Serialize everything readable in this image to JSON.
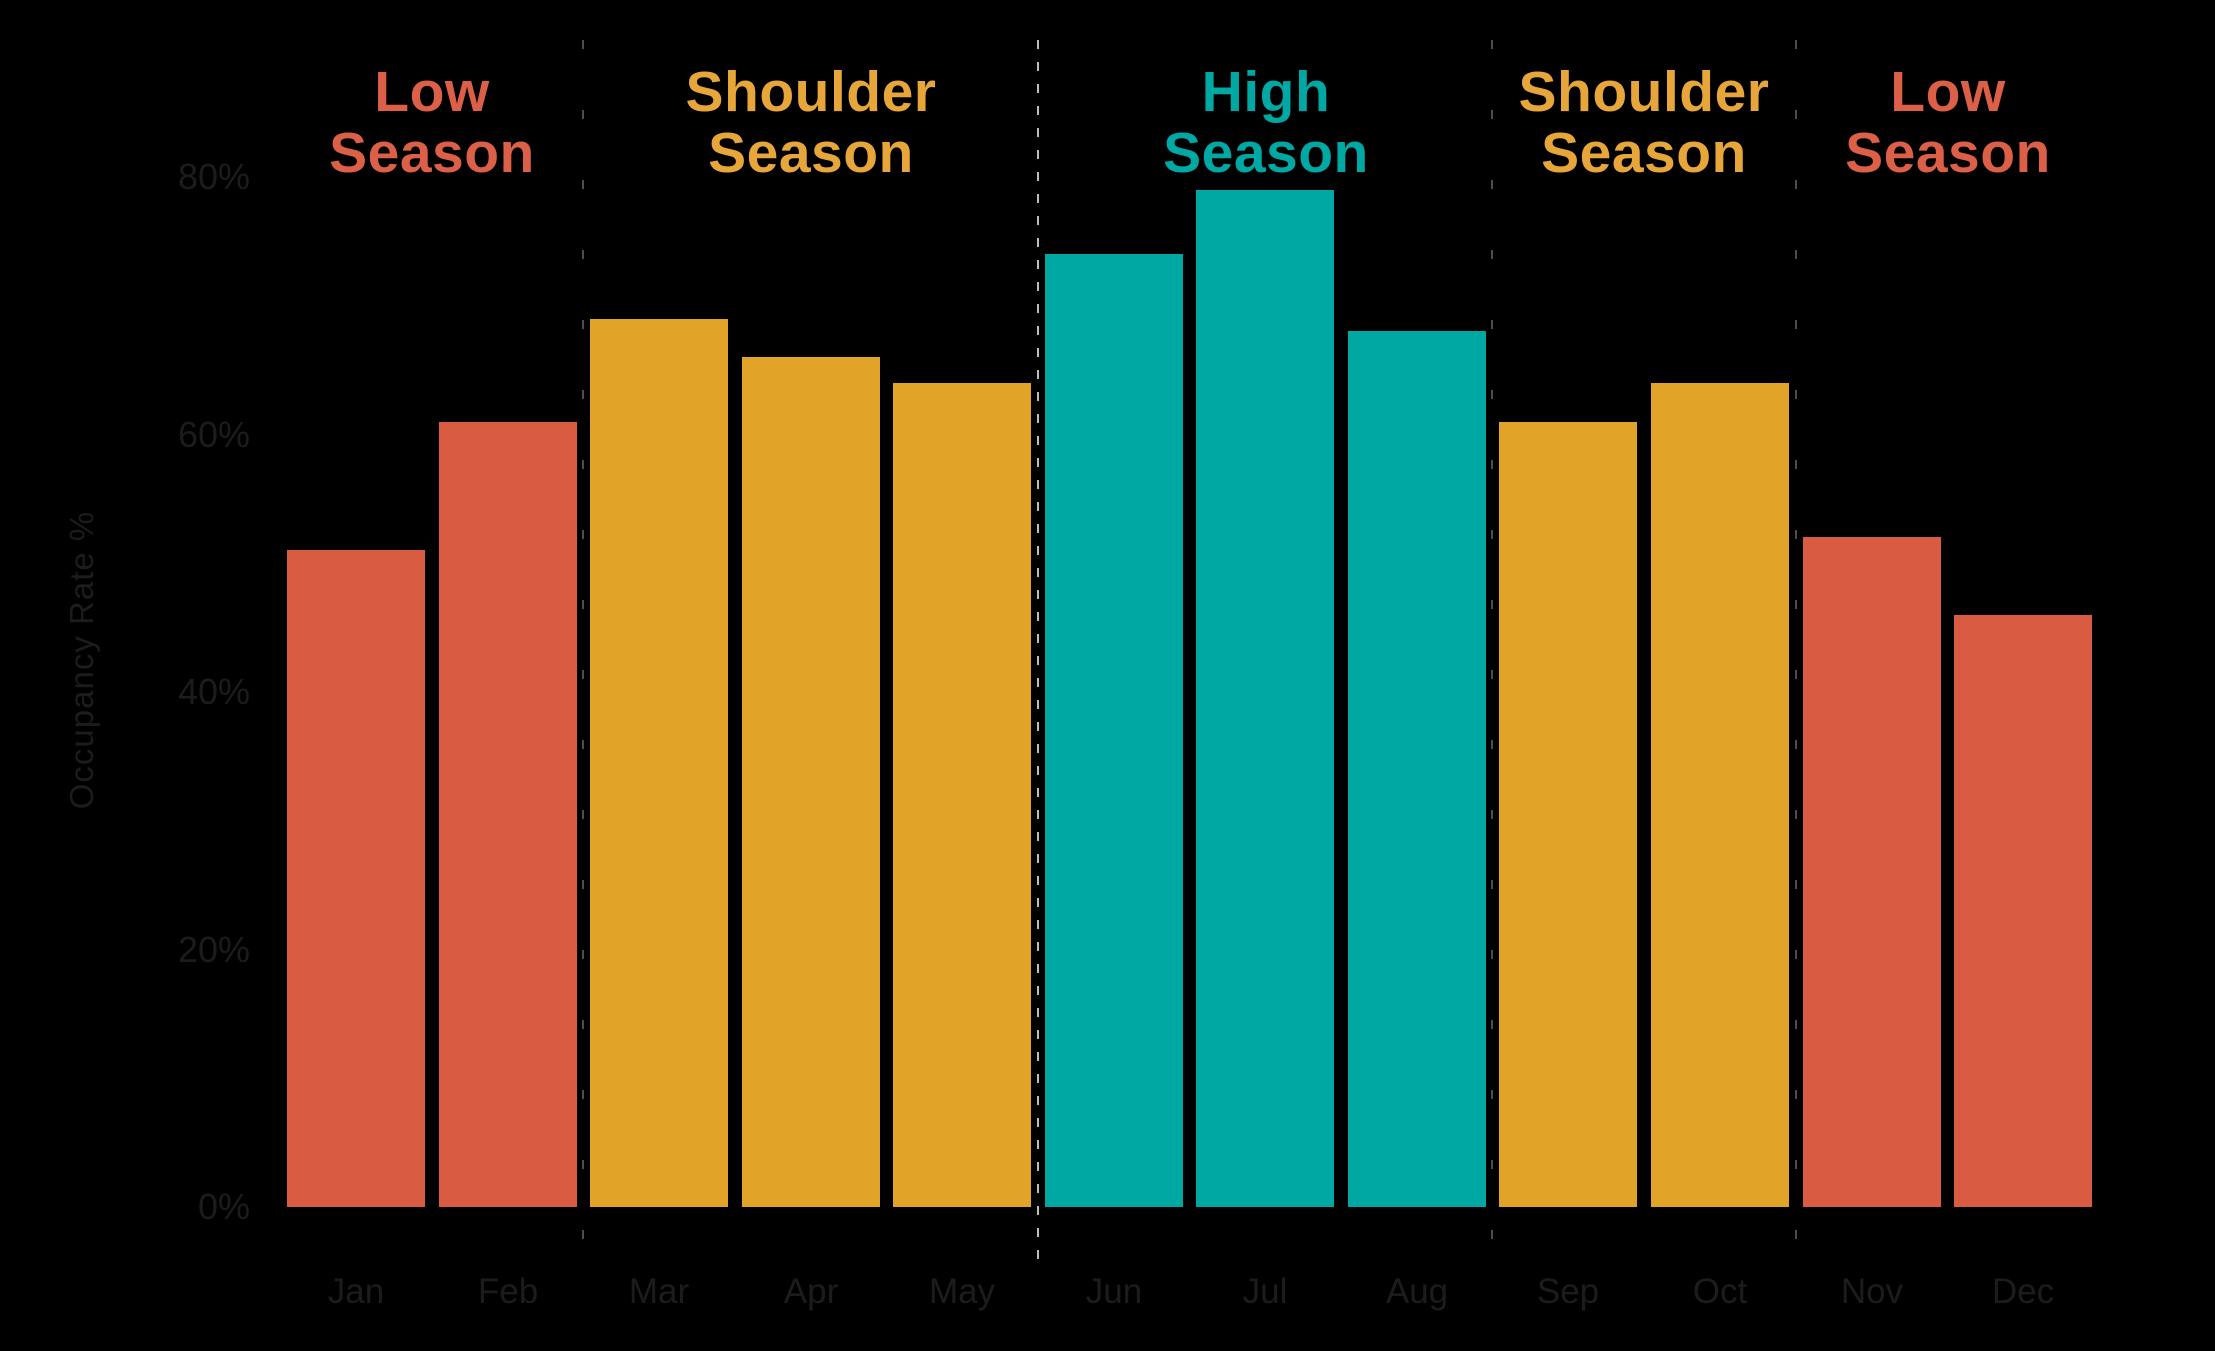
{
  "colors": {
    "background": "#000000",
    "red": "#D85B42",
    "amber": "#E2A428",
    "teal": "#00A8A4",
    "red_text": "#DC5F48",
    "amber_text": "#E6A63A",
    "teal_text": "#00A8A4",
    "axis_text": "#1C1C1C",
    "separator_bright": "#BDBDBD",
    "separator_dim": "#4D4D4D"
  },
  "chart_data": {
    "type": "bar",
    "title": "",
    "xlabel": "",
    "ylabel": "Occupancy Rate %",
    "categories": [
      "Jan",
      "Feb",
      "Mar",
      "Apr",
      "May",
      "Jun",
      "Jul",
      "Aug",
      "Sep",
      "Oct",
      "Nov",
      "Dec"
    ],
    "values": [
      51,
      61,
      69,
      66,
      64,
      74,
      79,
      68,
      61,
      64,
      52,
      46
    ],
    "bar_seasons": [
      "low",
      "low",
      "shoulder",
      "shoulder",
      "shoulder",
      "high",
      "high",
      "high",
      "shoulder",
      "shoulder",
      "low",
      "low"
    ],
    "ylim": [
      0,
      80
    ],
    "ytick_values": [
      0,
      20,
      40,
      60,
      80
    ],
    "ytick_labels": [
      "0%",
      "20%",
      "40%",
      "60%",
      "80%"
    ],
    "grid": false,
    "legend_position": "none",
    "highlight_separator_after": "May",
    "season_bands": [
      {
        "label_line1": "Low",
        "label_line2": "Season",
        "season": "low",
        "months": [
          "Jan",
          "Feb"
        ]
      },
      {
        "label_line1": "Shoulder",
        "label_line2": "Season",
        "season": "shoulder",
        "months": [
          "Mar",
          "Apr",
          "May"
        ]
      },
      {
        "label_line1": "High",
        "label_line2": "Season",
        "season": "high",
        "months": [
          "Jun",
          "Jul",
          "Aug"
        ]
      },
      {
        "label_line1": "Shoulder",
        "label_line2": "Season",
        "season": "shoulder",
        "months": [
          "Sep",
          "Oct"
        ]
      },
      {
        "label_line1": "Low",
        "label_line2": "Season",
        "season": "low",
        "months": [
          "Nov",
          "Dec"
        ]
      }
    ]
  }
}
